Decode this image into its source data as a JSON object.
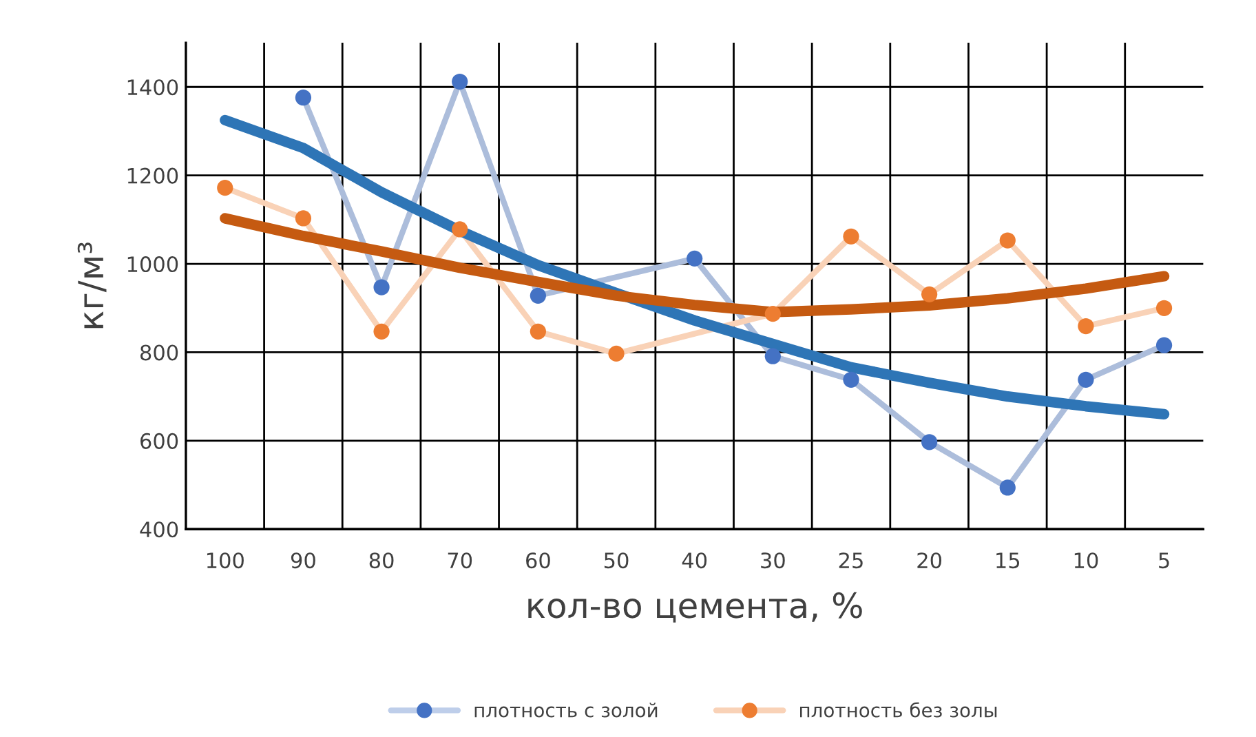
{
  "chart_data": {
    "type": "line",
    "xlabel": "кол-во цемента, %",
    "ylabel": "кг/м³",
    "categories": [
      "100",
      "90",
      "80",
      "70",
      "60",
      "50",
      "40",
      "30",
      "25",
      "20",
      "15",
      "10",
      "5"
    ],
    "ylim": [
      400,
      1500
    ],
    "yticks": [
      400,
      600,
      800,
      1000,
      1200,
      1400
    ],
    "grid": true,
    "legend": "bottom",
    "line_style": "solid",
    "series": [
      {
        "name": "плотность с золой",
        "color": "#4472c4",
        "marker": "circle",
        "values": [
          null,
          1376,
          947,
          1412,
          928,
          null,
          1012,
          791,
          738,
          597,
          494,
          738,
          816
        ]
      },
      {
        "name": "плотность без золы",
        "color": "#ed7d31",
        "marker": "circle",
        "values": [
          1172,
          1103,
          847,
          1078,
          847,
          797,
          null,
          887,
          1062,
          931,
          1053,
          859,
          900
        ]
      },
      {
        "type": "line",
        "color": "#2e75b6",
        "marker": "none",
        "values": [
          1325,
          1262,
          1162,
          1075,
          997,
          934,
          872,
          819,
          766,
          731,
          700,
          678,
          660
        ]
      },
      {
        "type": "line",
        "color": "#c55a11",
        "marker": "none",
        "values": [
          1103,
          1063,
          1028,
          991,
          959,
          928,
          907,
          891,
          897,
          906,
          922,
          944,
          972
        ]
      }
    ]
  }
}
